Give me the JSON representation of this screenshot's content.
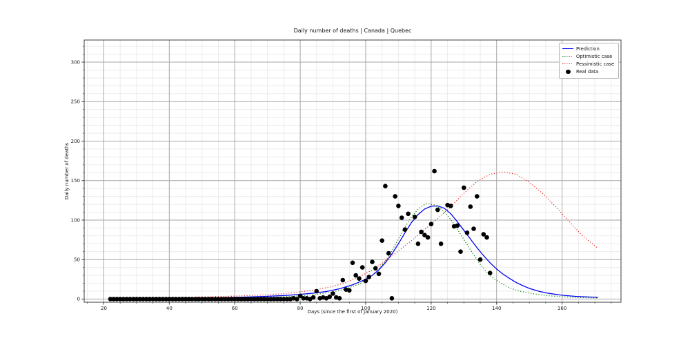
{
  "chart_data": {
    "type": "line",
    "title": "Daily number of deaths | Canada | Quebec",
    "xlabel": "Days (since the first of January 2020)",
    "ylabel": "Daily number of deaths",
    "xlim": [
      14,
      178
    ],
    "ylim": [
      -4,
      328
    ],
    "xticks": [
      20,
      40,
      60,
      80,
      100,
      120,
      140,
      160
    ],
    "yticks": [
      0,
      50,
      100,
      150,
      200,
      250,
      300
    ],
    "x_minor_step": 5,
    "y_minor_step": 10,
    "grid": true,
    "legend_position": "upper right",
    "colors": {
      "prediction": "#0000ee",
      "optimistic": "#007f00",
      "pessimistic": "#f02020",
      "real_data": "#000000",
      "grid_major": "#a6a6a6",
      "grid_minor": "#e9e9e9",
      "spine": "#3c3c3c",
      "text": "#1a1a1a"
    },
    "legend": [
      {
        "label": "Prediction",
        "swatch": "line",
        "color": "#0000ee"
      },
      {
        "label": "Optimistic case",
        "swatch": "dotted",
        "color": "#007f00"
      },
      {
        "label": "Pessimistic case",
        "swatch": "dotted",
        "color": "#f02020"
      },
      {
        "label": "Real data",
        "swatch": "dot",
        "color": "#000000"
      }
    ],
    "series": [
      {
        "name": "Prediction",
        "style": "solid",
        "color": "#0000ee",
        "x": [
          22,
          30,
          40,
          50,
          58,
          64,
          70,
          75,
          80,
          84,
          88,
          92,
          96,
          100,
          102,
          104,
          106,
          108,
          110,
          112,
          114,
          116,
          118,
          120,
          122,
          124,
          126,
          128,
          130,
          132,
          134,
          136,
          138,
          140,
          142,
          144,
          146,
          148,
          150,
          153,
          156,
          160,
          164,
          168,
          171
        ],
        "y": [
          0.3,
          0.5,
          0.8,
          1.3,
          1.9,
          2.6,
          3.5,
          4.5,
          6,
          7.5,
          9.5,
          13,
          18,
          25,
          30,
          37,
          46,
          57,
          70,
          84,
          97,
          107,
          114,
          117.5,
          118,
          115,
          108,
          98,
          87,
          76,
          65,
          55,
          46,
          38,
          31.5,
          26,
          21,
          17,
          13.5,
          9.8,
          7.2,
          4.8,
          3.4,
          2.6,
          2.2
        ]
      },
      {
        "name": "Optimistic case",
        "style": "dotted",
        "color": "#007f00",
        "x": [
          22,
          30,
          40,
          50,
          60,
          70,
          75,
          80,
          85,
          90,
          94,
          98,
          100,
          102,
          104,
          106,
          108,
          110,
          112,
          114,
          116,
          118,
          119,
          121,
          123,
          125,
          127,
          129,
          131,
          133,
          135,
          137,
          139,
          141,
          144,
          147,
          150,
          155,
          160,
          166,
          171
        ],
        "y": [
          0.2,
          0.3,
          0.5,
          0.8,
          1.2,
          2,
          2.9,
          4,
          6,
          9,
          13,
          19,
          24,
          30,
          38,
          48,
          61,
          76,
          91,
          104,
          114,
          120,
          121,
          119,
          114,
          106,
          95,
          82,
          69,
          56,
          44,
          34,
          26,
          21,
          14,
          10,
          7.5,
          4.5,
          3,
          1.8,
          1.2
        ]
      },
      {
        "name": "Pessimistic case",
        "style": "dotted",
        "color": "#f02020",
        "x": [
          22,
          30,
          40,
          50,
          60,
          68,
          74,
          80,
          85,
          90,
          94,
          98,
          102,
          106,
          110,
          114,
          118,
          122,
          126,
          130,
          134,
          138,
          142,
          146,
          150,
          154,
          158,
          162,
          166,
          171
        ],
        "y": [
          0.8,
          1.2,
          1.8,
          2.6,
          3.8,
          5,
          6.5,
          9,
          12,
          16,
          21,
          28,
          37,
          48,
          61,
          74,
          88,
          102,
          117,
          134,
          149,
          158,
          161,
          158,
          148,
          134,
          117,
          99,
          81,
          64
        ]
      }
    ],
    "scatter": {
      "name": "Real data",
      "color": "#000000",
      "points": [
        [
          22,
          0
        ],
        [
          23,
          0
        ],
        [
          24,
          0
        ],
        [
          25,
          0
        ],
        [
          26,
          0
        ],
        [
          27,
          0
        ],
        [
          28,
          0
        ],
        [
          29,
          0
        ],
        [
          30,
          0
        ],
        [
          31,
          0
        ],
        [
          32,
          0
        ],
        [
          33,
          0
        ],
        [
          34,
          0
        ],
        [
          35,
          0
        ],
        [
          36,
          0
        ],
        [
          37,
          0
        ],
        [
          38,
          0
        ],
        [
          39,
          0
        ],
        [
          40,
          0
        ],
        [
          41,
          0
        ],
        [
          42,
          0
        ],
        [
          43,
          0
        ],
        [
          44,
          0
        ],
        [
          45,
          0
        ],
        [
          46,
          0
        ],
        [
          47,
          0
        ],
        [
          48,
          0
        ],
        [
          49,
          0
        ],
        [
          50,
          0
        ],
        [
          51,
          0
        ],
        [
          52,
          0
        ],
        [
          53,
          0
        ],
        [
          54,
          0
        ],
        [
          55,
          0
        ],
        [
          56,
          0
        ],
        [
          57,
          0
        ],
        [
          58,
          0
        ],
        [
          59,
          0
        ],
        [
          60,
          0
        ],
        [
          61,
          0
        ],
        [
          62,
          0
        ],
        [
          63,
          0
        ],
        [
          64,
          0
        ],
        [
          65,
          0
        ],
        [
          66,
          0
        ],
        [
          67,
          0
        ],
        [
          68,
          0
        ],
        [
          69,
          0
        ],
        [
          70,
          0
        ],
        [
          71,
          0
        ],
        [
          72,
          0
        ],
        [
          73,
          0
        ],
        [
          74,
          0
        ],
        [
          75,
          0
        ],
        [
          76,
          0
        ],
        [
          77,
          0
        ],
        [
          78,
          1
        ],
        [
          79,
          0
        ],
        [
          80,
          4
        ],
        [
          81,
          1
        ],
        [
          82,
          1
        ],
        [
          83,
          0
        ],
        [
          84,
          2
        ],
        [
          85,
          10
        ],
        [
          86,
          1
        ],
        [
          87,
          2
        ],
        [
          88,
          1
        ],
        [
          89,
          3
        ],
        [
          90,
          7
        ],
        [
          91,
          2
        ],
        [
          92,
          1
        ],
        [
          93,
          24
        ],
        [
          94,
          12
        ],
        [
          95,
          11
        ],
        [
          96,
          46
        ],
        [
          97,
          30
        ],
        [
          98,
          26
        ],
        [
          99,
          40
        ],
        [
          100,
          23
        ],
        [
          101,
          28
        ],
        [
          102,
          47
        ],
        [
          103,
          39
        ],
        [
          104,
          32
        ],
        [
          105,
          74
        ],
        [
          106,
          143
        ],
        [
          107,
          58
        ],
        [
          108,
          1
        ],
        [
          109,
          130
        ],
        [
          110,
          118
        ],
        [
          111,
          103
        ],
        [
          112,
          88
        ],
        [
          113,
          108
        ],
        [
          115,
          104
        ],
        [
          116,
          70
        ],
        [
          117,
          85
        ],
        [
          118,
          81
        ],
        [
          119,
          78
        ],
        [
          120,
          95
        ],
        [
          121,
          162
        ],
        [
          122,
          113
        ],
        [
          123,
          70
        ],
        [
          125,
          119
        ],
        [
          126,
          118
        ],
        [
          127,
          92
        ],
        [
          128,
          93
        ],
        [
          129,
          60
        ],
        [
          130,
          141
        ],
        [
          131,
          84
        ],
        [
          132,
          117
        ],
        [
          133,
          89
        ],
        [
          134,
          130
        ],
        [
          135,
          50
        ],
        [
          136,
          82
        ],
        [
          137,
          78
        ],
        [
          138,
          33
        ]
      ]
    }
  }
}
